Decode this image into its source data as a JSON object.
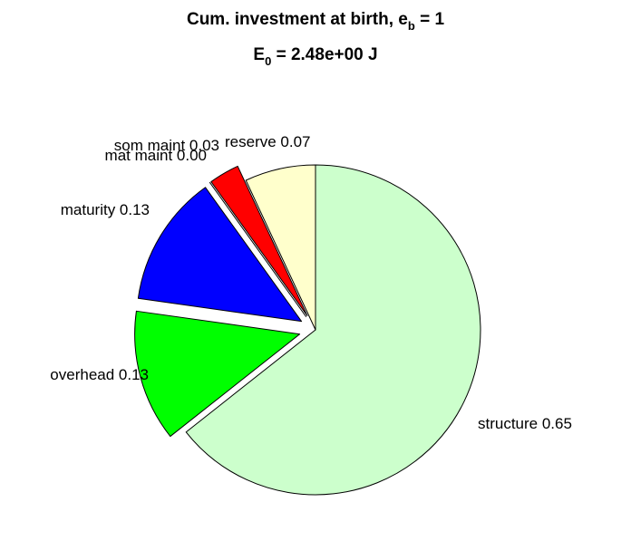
{
  "chart_data": {
    "type": "pie",
    "title": {
      "line1": {
        "prefix": "Cum. investment at birth, e",
        "sub": "b",
        "suffix": " = 1"
      },
      "line2": {
        "prefix": "E",
        "sub": "0",
        "suffix": " = 2.48e+00 J"
      }
    },
    "slices": [
      {
        "name": "structure",
        "value": 0.65,
        "label": "structure 0.65",
        "color": "#ccffcc",
        "exploded": false
      },
      {
        "name": "overhead",
        "value": 0.13,
        "label": "overhead 0.13",
        "color": "#00ff00",
        "exploded": true
      },
      {
        "name": "maturity",
        "value": 0.13,
        "label": "maturity 0.13",
        "color": "#0000ff",
        "exploded": true
      },
      {
        "name": "mat maint",
        "value": 0.0,
        "label": "mat maint 0.00",
        "color": "#000000",
        "exploded": true
      },
      {
        "name": "som maint",
        "value": 0.03,
        "label": "som maint 0.03",
        "color": "#ff0000",
        "exploded": true
      },
      {
        "name": "reserve",
        "value": 0.07,
        "label": "reserve 0.07",
        "color": "#ffffcc",
        "exploded": false
      }
    ]
  }
}
